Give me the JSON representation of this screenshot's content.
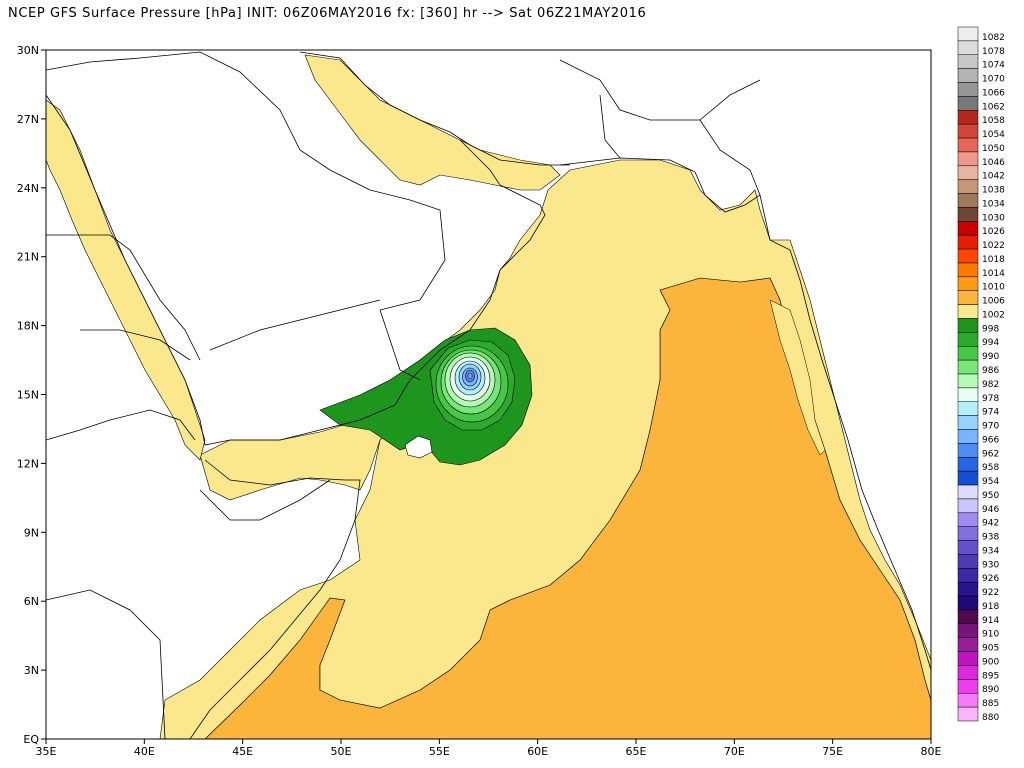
{
  "title": "NCEP GFS Surface Pressure [hPa] INIT: 06Z06MAY2016 fx: [360] hr --> Sat 06Z21MAY2016",
  "axes": {
    "lon_labels": [
      "35E",
      "40E",
      "45E",
      "50E",
      "55E",
      "60E",
      "65E",
      "70E",
      "75E",
      "80E"
    ],
    "lon_values": [
      35,
      40,
      45,
      50,
      55,
      60,
      65,
      70,
      75,
      80
    ],
    "lat_labels": [
      "EQ",
      "3N",
      "6N",
      "9N",
      "12N",
      "15N",
      "18N",
      "21N",
      "24N",
      "27N",
      "30N"
    ],
    "lat_values": [
      0,
      3,
      6,
      9,
      12,
      15,
      18,
      21,
      24,
      27,
      30
    ],
    "lon_range": [
      35,
      80
    ],
    "lat_range": [
      0,
      30
    ]
  },
  "colorbar": {
    "levels": [
      {
        "label": "1082",
        "color": "#eeeeee"
      },
      {
        "label": "1078",
        "color": "#dcdcdc"
      },
      {
        "label": "1074",
        "color": "#c8c8c8"
      },
      {
        "label": "1070",
        "color": "#b4b4b4"
      },
      {
        "label": "1066",
        "color": "#969696"
      },
      {
        "label": "1062",
        "color": "#787878"
      },
      {
        "label": "1058",
        "color": "#b4281e"
      },
      {
        "label": "1054",
        "color": "#d2463c"
      },
      {
        "label": "1050",
        "color": "#e6645a"
      },
      {
        "label": "1046",
        "color": "#f0968c"
      },
      {
        "label": "1042",
        "color": "#e6b4a0"
      },
      {
        "label": "1038",
        "color": "#c89678"
      },
      {
        "label": "1034",
        "color": "#a0785a"
      },
      {
        "label": "1030",
        "color": "#6e4632"
      },
      {
        "label": "1026",
        "color": "#c80000"
      },
      {
        "label": "1022",
        "color": "#e61e00"
      },
      {
        "label": "1018",
        "color": "#ff4600"
      },
      {
        "label": "1014",
        "color": "#ff7800"
      },
      {
        "label": "1010",
        "color": "#ff9a14"
      },
      {
        "label": "1006",
        "color": "#fbb43c"
      },
      {
        "label": "1002",
        "color": "#fbe88c"
      },
      {
        "label": "998",
        "color": "#1e961e"
      },
      {
        "label": "994",
        "color": "#2daa2d"
      },
      {
        "label": "990",
        "color": "#46c846"
      },
      {
        "label": "986",
        "color": "#78e678"
      },
      {
        "label": "982",
        "color": "#b4fab4"
      },
      {
        "label": "978",
        "color": "#e6fff0"
      },
      {
        "label": "974",
        "color": "#b4f0fa"
      },
      {
        "label": "970",
        "color": "#96d2fa"
      },
      {
        "label": "966",
        "color": "#78b4ff"
      },
      {
        "label": "962",
        "color": "#508cf0"
      },
      {
        "label": "958",
        "color": "#2864e6"
      },
      {
        "label": "954",
        "color": "#1450d2"
      },
      {
        "label": "950",
        "color": "#dcdcff"
      },
      {
        "label": "946",
        "color": "#c8c8ff"
      },
      {
        "label": "942",
        "color": "#a08cf0"
      },
      {
        "label": "938",
        "color": "#826edc"
      },
      {
        "label": "934",
        "color": "#6450c8"
      },
      {
        "label": "930",
        "color": "#4b3cb4"
      },
      {
        "label": "926",
        "color": "#3c28a0"
      },
      {
        "label": "922",
        "color": "#28148c"
      },
      {
        "label": "918",
        "color": "#1e0a78"
      },
      {
        "label": "914",
        "color": "#500a50"
      },
      {
        "label": "910",
        "color": "#781478"
      },
      {
        "label": "905",
        "color": "#961e96"
      },
      {
        "label": "900",
        "color": "#be14be"
      },
      {
        "label": "895",
        "color": "#dc28dc"
      },
      {
        "label": "890",
        "color": "#f03cf0"
      },
      {
        "label": "885",
        "color": "#fa78fa"
      },
      {
        "label": "880",
        "color": "#fab4fa"
      }
    ]
  },
  "field": {
    "colors": {
      "p1002": "#fbe88c",
      "p1006": "#fbb43c",
      "p998": "#1e961e",
      "p994": "#2daa2d",
      "p990": "#46c846",
      "p986": "#78e678",
      "p982": "#b4fab4",
      "p978": "#e6fff0",
      "p974": "#b4f0fa",
      "p970": "#96d2fa",
      "p966": "#78b4ff",
      "p962": "#508cf0",
      "core": "#a08cf0",
      "land": "#ffffff"
    },
    "cyclone_center": {
      "lon": 56.5,
      "lat": 15.9
    }
  }
}
